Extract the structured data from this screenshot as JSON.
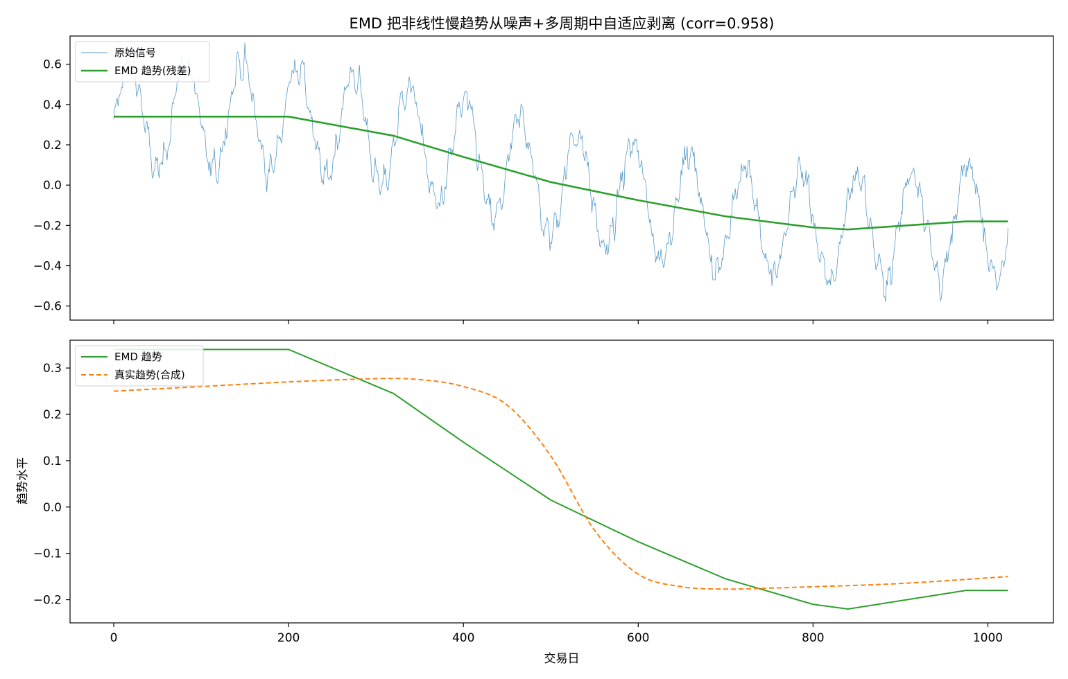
{
  "figure": {
    "title": "EMD 把非线性慢趋势从噪声+多周期中自适应剥离 (corr=0.958)",
    "xlabel": "交易日",
    "ylabel_bottom": "趋势水平"
  },
  "colors": {
    "raw": "#1f77b4",
    "emd": "#2ca02c",
    "true": "#ff7f0e"
  },
  "chart_data": [
    {
      "type": "line",
      "panel": "top",
      "title": "EMD 把非线性慢趋势从噪声+多周期中自适应剥离 (corr=0.958)",
      "xlabel": "",
      "ylabel": "",
      "xlim": [
        -50,
        1075
      ],
      "ylim": [
        -0.67,
        0.74
      ],
      "xticks": [
        0,
        200,
        400,
        600,
        800,
        1000
      ],
      "yticks": [
        -0.6,
        -0.4,
        -0.2,
        0.0,
        0.2,
        0.4,
        0.6
      ],
      "yticklabels": [
        "−0.6",
        "−0.4",
        "−0.2",
        "0.0",
        "0.2",
        "0.4",
        "0.6"
      ],
      "legend": "upper-left",
      "raw_signal": {
        "name": "原始信号",
        "n": 1024,
        "period_days": 64,
        "amplitude": 0.27,
        "noise_std": 0.06
      },
      "series": [
        {
          "name": "EMD 趋势(残差)",
          "x": [
            0,
            200,
            320,
            400,
            500,
            600,
            700,
            800,
            840,
            975,
            1023
          ],
          "y": [
            0.34,
            0.34,
            0.245,
            0.14,
            0.015,
            -0.075,
            -0.155,
            -0.21,
            -0.22,
            -0.18,
            -0.18
          ]
        }
      ]
    },
    {
      "type": "line",
      "panel": "bottom",
      "xlabel": "交易日",
      "ylabel": "趋势水平",
      "xlim": [
        -50,
        1075
      ],
      "ylim": [
        -0.25,
        0.36
      ],
      "xticks": [
        0,
        200,
        400,
        600,
        800,
        1000
      ],
      "yticks": [
        -0.2,
        -0.1,
        0.0,
        0.1,
        0.2,
        0.3
      ],
      "yticklabels": [
        "−0.2",
        "−0.1",
        "0.0",
        "0.1",
        "0.2",
        "0.3"
      ],
      "legend": "upper-left",
      "series": [
        {
          "name": "EMD 趋势",
          "style": "solid",
          "x": [
            0,
            200,
            320,
            400,
            500,
            600,
            700,
            800,
            840,
            975,
            1023
          ],
          "y": [
            0.34,
            0.34,
            0.245,
            0.14,
            0.015,
            -0.075,
            -0.155,
            -0.21,
            -0.22,
            -0.18,
            -0.18
          ]
        },
        {
          "name": "真实趋势(合成)",
          "style": "dashed",
          "x": [
            0,
            100,
            200,
            300,
            350,
            400,
            450,
            500,
            550,
            600,
            650,
            700,
            750,
            800,
            900,
            1023
          ],
          "y": [
            0.25,
            0.26,
            0.27,
            0.277,
            0.275,
            0.26,
            0.22,
            0.11,
            -0.05,
            -0.145,
            -0.172,
            -0.177,
            -0.175,
            -0.172,
            -0.165,
            -0.15
          ]
        }
      ]
    }
  ]
}
